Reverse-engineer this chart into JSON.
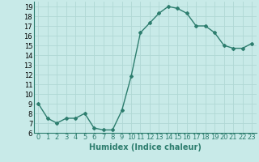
{
  "x": [
    0,
    1,
    2,
    3,
    4,
    5,
    6,
    7,
    8,
    9,
    10,
    11,
    12,
    13,
    14,
    15,
    16,
    17,
    18,
    19,
    20,
    21,
    22,
    23
  ],
  "y": [
    9,
    7.5,
    7,
    7.5,
    7.5,
    8,
    6.5,
    6.3,
    6.3,
    8.3,
    11.8,
    16.3,
    17.3,
    18.3,
    19.0,
    18.8,
    18.3,
    17.0,
    17.0,
    16.3,
    15.0,
    14.7,
    14.7,
    15.2
  ],
  "line_color": "#2d7d6e",
  "marker": "D",
  "marker_size": 2,
  "line_width": 1.0,
  "bg_color": "#c8eae8",
  "grid_color": "#b0d8d4",
  "xlabel": "Humidex (Indice chaleur)",
  "xlabel_fontsize": 7,
  "tick_fontsize": 6,
  "ylim": [
    6,
    19.5
  ],
  "xlim": [
    -0.5,
    23.5
  ],
  "yticks": [
    6,
    7,
    8,
    9,
    10,
    11,
    12,
    13,
    14,
    15,
    16,
    17,
    18,
    19
  ],
  "xticks": [
    0,
    1,
    2,
    3,
    4,
    5,
    6,
    7,
    8,
    9,
    10,
    11,
    12,
    13,
    14,
    15,
    16,
    17,
    18,
    19,
    20,
    21,
    22,
    23
  ]
}
